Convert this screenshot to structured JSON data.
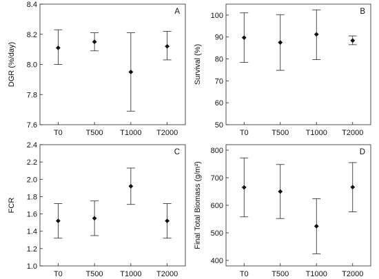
{
  "chart_data": [
    {
      "type": "scatter",
      "panel_label": "A",
      "ylabel": "DGR (%/day)",
      "ylim": [
        7.6,
        8.4
      ],
      "yticks": [
        "7.6",
        "7.8",
        "8.0",
        "8.2",
        "8.4"
      ],
      "categories": [
        "T0",
        "T500",
        "T1000",
        "T2000"
      ],
      "values": [
        8.11,
        8.15,
        7.95,
        8.12
      ],
      "err_low": [
        8.0,
        8.09,
        7.69,
        8.03
      ],
      "err_high": [
        8.23,
        8.21,
        8.21,
        8.22
      ]
    },
    {
      "type": "scatter",
      "panel_label": "B",
      "ylabel": "Survival (%)",
      "ylim": [
        50,
        105
      ],
      "yticks": [
        "50",
        "60",
        "70",
        "80",
        "90",
        "100"
      ],
      "categories": [
        "T0",
        "T500",
        "T1000",
        "T2000"
      ],
      "values": [
        89.7,
        87.5,
        91.2,
        88.4
      ],
      "err_low": [
        78.4,
        74.8,
        79.7,
        86.5
      ],
      "err_high": [
        101.0,
        100.2,
        102.4,
        90.5
      ]
    },
    {
      "type": "scatter",
      "panel_label": "C",
      "ylabel": "FCR",
      "ylim": [
        1.0,
        2.4
      ],
      "yticks": [
        "1.0",
        "1.2",
        "1.4",
        "1.6",
        "1.8",
        "2.0",
        "2.2",
        "2.4"
      ],
      "categories": [
        "T0",
        "T500",
        "T1000",
        "T2000"
      ],
      "values": [
        1.52,
        1.55,
        1.92,
        1.52
      ],
      "err_low": [
        1.32,
        1.35,
        1.71,
        1.32
      ],
      "err_high": [
        1.72,
        1.75,
        2.13,
        1.72
      ]
    },
    {
      "type": "scatter",
      "panel_label": "D",
      "ylabel": "Final Total Biomass (g/m²)",
      "ylim": [
        380,
        820
      ],
      "yticks": [
        "400",
        "500",
        "600",
        "700",
        "800"
      ],
      "categories": [
        "T0",
        "T500",
        "T1000",
        "T2000"
      ],
      "values": [
        665,
        650,
        524,
        666
      ],
      "err_low": [
        558,
        552,
        424,
        576
      ],
      "err_high": [
        772,
        748,
        624,
        755
      ]
    }
  ]
}
